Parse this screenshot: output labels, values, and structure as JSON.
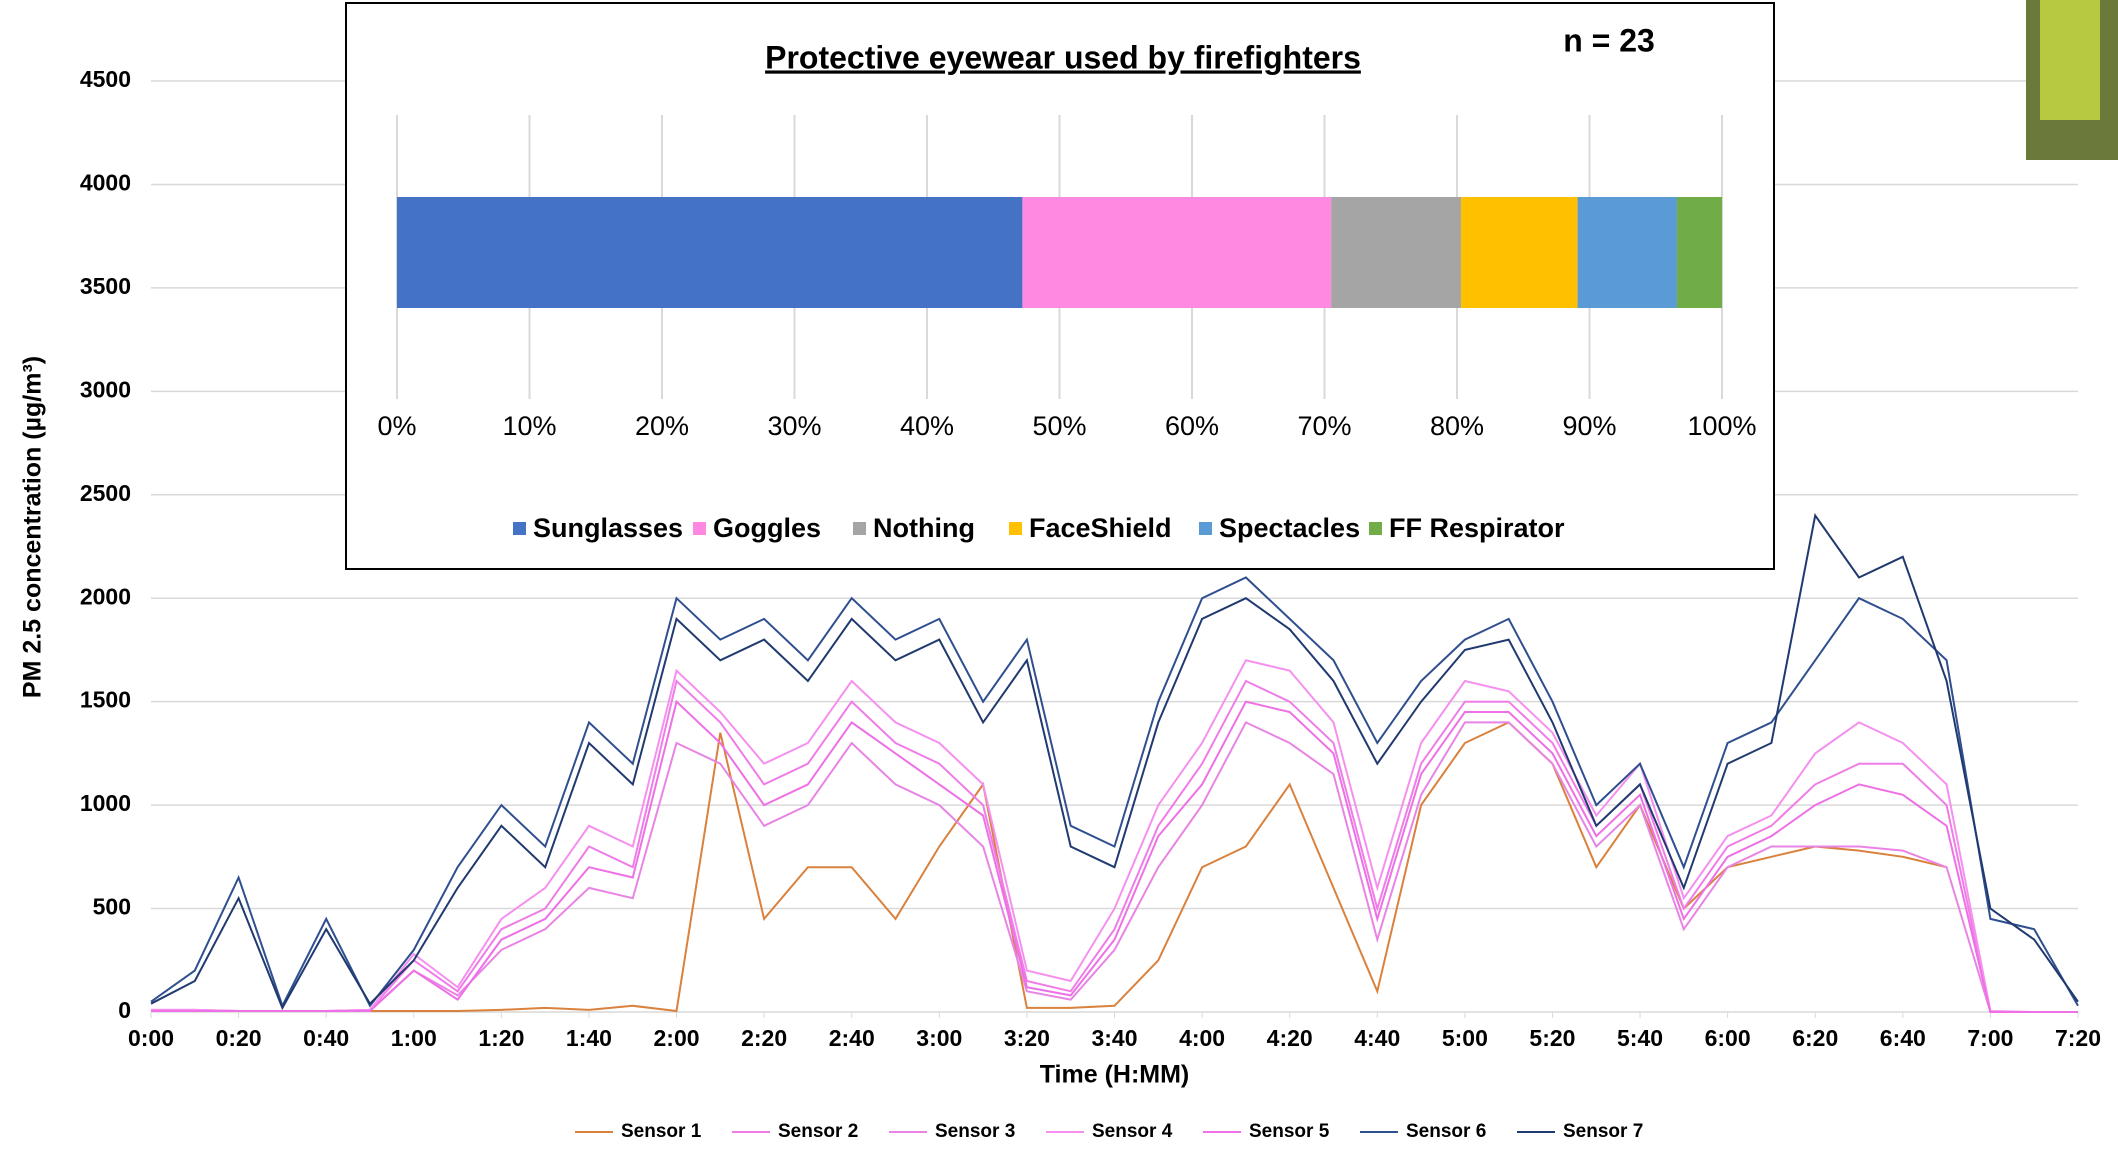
{
  "chart_data": [
    {
      "type": "line",
      "y_label": "PM 2.5 concentration (µg/m³)",
      "x_label": "Time (H:MM)",
      "x": [
        0,
        10,
        20,
        30,
        40,
        50,
        60,
        70,
        80,
        90,
        100,
        110,
        120,
        130,
        140,
        150,
        160,
        170,
        180,
        190,
        200,
        210,
        220,
        230,
        240,
        250,
        260,
        270,
        280,
        290,
        300,
        310,
        320,
        330,
        340,
        350,
        360,
        370,
        380,
        390,
        400,
        410,
        420,
        430,
        440
      ],
      "xlim": [
        0,
        440
      ],
      "xticks": [
        {
          "value": 0,
          "label": "0:00"
        },
        {
          "value": 20,
          "label": "0:20"
        },
        {
          "value": 40,
          "label": "0:40"
        },
        {
          "value": 60,
          "label": "1:00"
        },
        {
          "value": 80,
          "label": "1:20"
        },
        {
          "value": 100,
          "label": "1:40"
        },
        {
          "value": 120,
          "label": "2:00"
        },
        {
          "value": 140,
          "label": "2:20"
        },
        {
          "value": 160,
          "label": "2:40"
        },
        {
          "value": 180,
          "label": "3:00"
        },
        {
          "value": 200,
          "label": "3:20"
        },
        {
          "value": 220,
          "label": "3:40"
        },
        {
          "value": 240,
          "label": "4:00"
        },
        {
          "value": 260,
          "label": "4:20"
        },
        {
          "value": 280,
          "label": "4:40"
        },
        {
          "value": 300,
          "label": "5:00"
        },
        {
          "value": 320,
          "label": "5:20"
        },
        {
          "value": 340,
          "label": "5:40"
        },
        {
          "value": 360,
          "label": "6:00"
        },
        {
          "value": 380,
          "label": "6:20"
        },
        {
          "value": 400,
          "label": "6:40"
        },
        {
          "value": 420,
          "label": "7:00"
        },
        {
          "value": 440,
          "label": "7:20"
        }
      ],
      "ylim": [
        0,
        4500
      ],
      "yticks": [
        0,
        500,
        1000,
        1500,
        2000,
        2500,
        3000,
        3500,
        4000,
        4500
      ],
      "grid": true,
      "series": [
        {
          "name": "Sensor 1",
          "color": "#d9813d",
          "values": [
            5,
            5,
            5,
            5,
            5,
            5,
            5,
            5,
            10,
            20,
            10,
            30,
            5,
            1350,
            450,
            700,
            700,
            450,
            800,
            1100,
            20,
            20,
            30,
            250,
            700,
            800,
            1100,
            600,
            100,
            1000,
            1300,
            1400,
            1200,
            700,
            1000,
            500,
            700,
            750,
            800,
            780,
            750,
            700,
            null,
            null,
            null
          ]
        },
        {
          "name": "Sensor 2",
          "color": "#f07ce8",
          "values": [
            10,
            10,
            5,
            5,
            5,
            10,
            250,
            100,
            400,
            500,
            800,
            700,
            1600,
            1400,
            1100,
            1200,
            1500,
            1300,
            1200,
            1000,
            150,
            100,
            400,
            900,
            1200,
            1600,
            1500,
            1300,
            500,
            1200,
            1500,
            1500,
            1300,
            900,
            1100,
            500,
            800,
            900,
            1100,
            1200,
            1200,
            1000,
            0,
            0,
            0
          ]
        },
        {
          "name": "Sensor 3",
          "color": "#e884e4",
          "values": [
            8,
            8,
            5,
            5,
            5,
            8,
            200,
            80,
            300,
            400,
            600,
            550,
            1300,
            1200,
            900,
            1000,
            1300,
            1100,
            1000,
            800,
            100,
            60,
            300,
            700,
            1000,
            1400,
            1300,
            1150,
            350,
            1050,
            1400,
            1400,
            1200,
            800,
            1000,
            400,
            700,
            800,
            800,
            800,
            780,
            700,
            0,
            0,
            0
          ]
        },
        {
          "name": "Sensor 4",
          "color": "#f590ef",
          "values": [
            10,
            10,
            5,
            5,
            5,
            10,
            280,
            120,
            450,
            600,
            900,
            800,
            1650,
            1450,
            1200,
            1300,
            1600,
            1400,
            1300,
            1100,
            200,
            150,
            500,
            1000,
            1300,
            1700,
            1650,
            1400,
            600,
            1300,
            1600,
            1550,
            1350,
            950,
            1200,
            550,
            850,
            950,
            1250,
            1400,
            1300,
            1100,
            5,
            0,
            0
          ]
        },
        {
          "name": "Sensor 5",
          "color": "#ee70e6",
          "values": [
            5,
            5,
            5,
            5,
            5,
            5,
            200,
            60,
            350,
            450,
            700,
            650,
            1500,
            1300,
            1000,
            1100,
            1400,
            1250,
            1100,
            950,
            120,
            80,
            350,
            850,
            1100,
            1500,
            1450,
            1250,
            450,
            1150,
            1450,
            1450,
            1250,
            850,
            1050,
            450,
            750,
            850,
            1000,
            1100,
            1050,
            900,
            0,
            0,
            0
          ]
        },
        {
          "name": "Sensor 6",
          "color": "#2f4f8f",
          "values": [
            50,
            200,
            650,
            30,
            450,
            30,
            300,
            700,
            1000,
            800,
            1400,
            1200,
            2000,
            1800,
            1900,
            1700,
            2000,
            1800,
            1900,
            1500,
            1800,
            900,
            800,
            1500,
            2000,
            2100,
            1900,
            1700,
            1300,
            1600,
            1800,
            1900,
            1500,
            1000,
            1200,
            700,
            1300,
            1400,
            1700,
            2000,
            1900,
            1700,
            450,
            400,
            30
          ]
        },
        {
          "name": "Sensor 7",
          "color": "#203a70",
          "values": [
            40,
            150,
            550,
            20,
            400,
            40,
            250,
            600,
            900,
            700,
            1300,
            1100,
            1900,
            1700,
            1800,
            1600,
            1900,
            1700,
            1800,
            1400,
            1700,
            800,
            700,
            1400,
            1900,
            2000,
            1850,
            1600,
            1200,
            1500,
            1750,
            1800,
            1400,
            900,
            1100,
            600,
            1200,
            1300,
            2400,
            2100,
            2200,
            1600,
            500,
            350,
            50
          ]
        }
      ]
    },
    {
      "type": "bar",
      "orientation": "horizontal",
      "stacked": true,
      "title": "Protective eyewear used by firefighters",
      "annotation": "n = 23",
      "xlim": [
        0,
        100
      ],
      "xticks": [
        {
          "value": 0,
          "label": "0%"
        },
        {
          "value": 10,
          "label": "10%"
        },
        {
          "value": 20,
          "label": "20%"
        },
        {
          "value": 30,
          "label": "30%"
        },
        {
          "value": 40,
          "label": "40%"
        },
        {
          "value": 50,
          "label": "50%"
        },
        {
          "value": 60,
          "label": "60%"
        },
        {
          "value": 70,
          "label": "70%"
        },
        {
          "value": 80,
          "label": "80%"
        },
        {
          "value": 90,
          "label": "90%"
        },
        {
          "value": 100,
          "label": "100%"
        }
      ],
      "grid": true,
      "series": [
        {
          "name": "Sunglasses",
          "color": "#4472c4",
          "values": [
            47.2
          ]
        },
        {
          "name": "Goggles",
          "color": "#ff88e0",
          "values": [
            23.3
          ]
        },
        {
          "name": "Nothing",
          "color": "#a5a5a5",
          "values": [
            9.8
          ]
        },
        {
          "name": "FaceShield",
          "color": "#ffc000",
          "values": [
            8.8
          ]
        },
        {
          "name": "Spectacles",
          "color": "#5b9bd5",
          "values": [
            7.5
          ]
        },
        {
          "name": "FF Respirator",
          "color": "#70ad47",
          "values": [
            3.4
          ]
        }
      ]
    }
  ]
}
